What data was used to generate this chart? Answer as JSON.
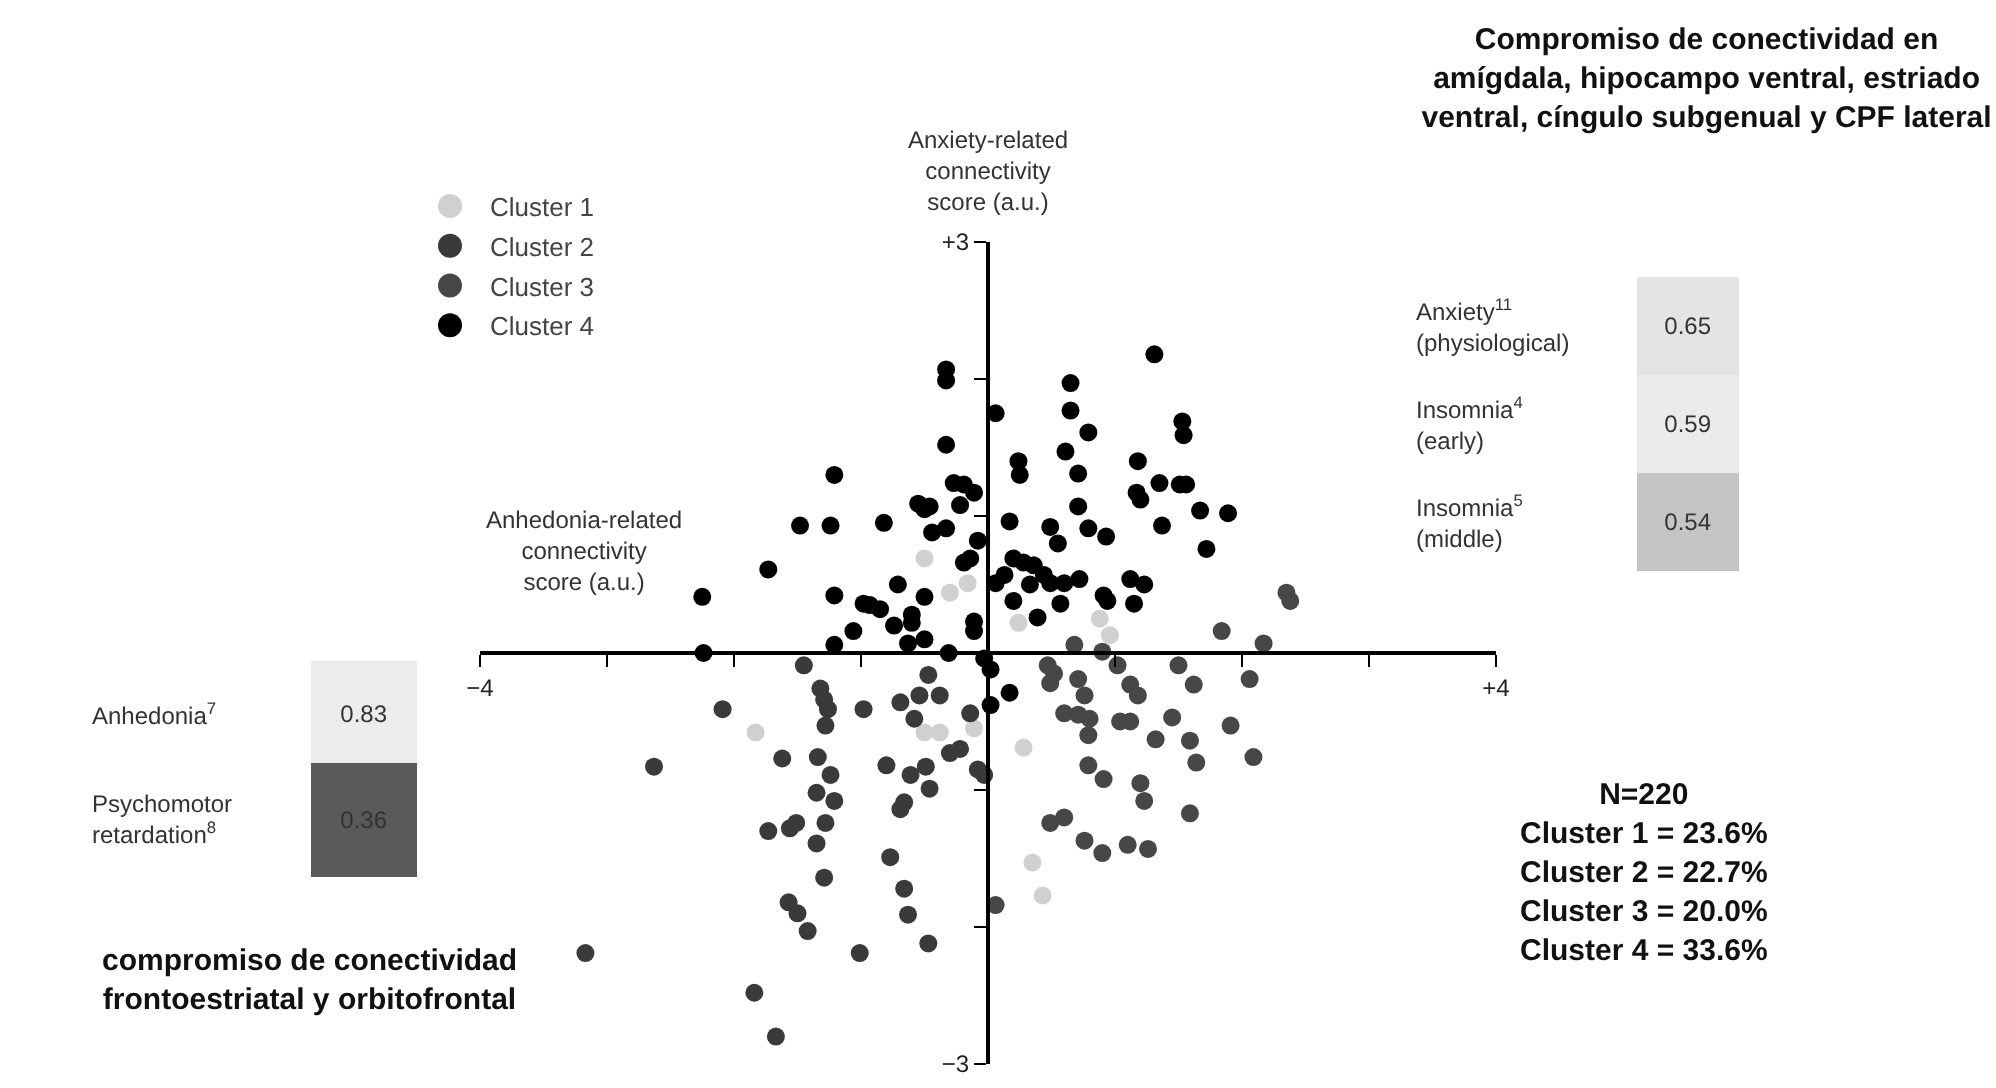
{
  "chart_data": {
    "type": "scatter",
    "title": "Compromiso de conectividad en\namígdala, hipocampo ventral, estriado\nventral, cíngulo subgenual y CPF lateral",
    "xlabel": "Anhedonia-related\nconnectivity\nscore (a.u.)",
    "ylabel": "Anxiety-related\nconnectivity\nscore (a.u.)",
    "xlim": [
      -4,
      4
    ],
    "ylim": [
      -3,
      3
    ],
    "xticks": [
      {
        "value": -4,
        "label": "−4"
      },
      {
        "value": -3,
        "label": null
      },
      {
        "value": -2,
        "label": null
      },
      {
        "value": -1,
        "label": null
      },
      {
        "value": 0,
        "label": null
      },
      {
        "value": 1,
        "label": null
      },
      {
        "value": 2,
        "label": null
      },
      {
        "value": 3,
        "label": null
      },
      {
        "value": 4,
        "label": "+4"
      }
    ],
    "yticks": [
      {
        "value": -3,
        "label": "−3"
      },
      {
        "value": -2,
        "label": null
      },
      {
        "value": -1,
        "label": null
      },
      {
        "value": 0,
        "label": null
      },
      {
        "value": 1,
        "label": null
      },
      {
        "value": 2,
        "label": null
      },
      {
        "value": 3,
        "label": "+3"
      }
    ],
    "grid": false,
    "legend": "top left",
    "marker": "circle",
    "series": [
      {
        "name": "Cluster 1",
        "color": "#d0d0d0",
        "x": [
          -0.5,
          -0.3,
          -0.16,
          0.24,
          0.88,
          0.96,
          -1.83,
          -0.5,
          -0.38,
          -0.11,
          0.28,
          0.35,
          0.43
        ],
        "values": [
          0.69,
          0.44,
          0.51,
          0.22,
          0.25,
          0.13,
          -0.58,
          -0.58,
          -0.58,
          -0.55,
          -0.69,
          -1.53,
          -1.77
        ]
      },
      {
        "name": "Cluster 2",
        "color": "#3a3a3a",
        "x": [
          -1.45,
          -1.32,
          -1.29,
          -1.26,
          -1.28,
          -2.09,
          -0.98,
          -0.69,
          -0.58,
          -0.54,
          -0.38,
          -0.47,
          -0.19,
          -0.14,
          -0.3,
          -0.22,
          -0.08,
          -0.03,
          -2.63,
          -1.62,
          -1.34,
          -1.24,
          -0.8,
          -0.61,
          -0.49,
          -0.46,
          -1.35,
          -1.21,
          -0.66,
          -0.69,
          -1.73,
          -1.56,
          -1.51,
          -1.28,
          -1.35,
          -0.77,
          -1.29,
          -0.66,
          -0.63,
          -1.57,
          -1.5,
          -1.42,
          -0.47,
          -1.01,
          -3.17,
          -1.84,
          -1.67
        ],
        "values": [
          -0.09,
          -0.26,
          -0.34,
          -0.41,
          -0.53,
          -0.41,
          -0.41,
          -0.36,
          -0.48,
          -0.31,
          -0.31,
          -0.16,
          null,
          -0.44,
          -0.73,
          -0.7,
          -0.85,
          -0.89,
          -0.83,
          -0.77,
          -0.76,
          -0.89,
          -0.82,
          -0.89,
          -0.83,
          -0.99,
          -1.02,
          -1.08,
          -1.09,
          -1.14,
          -1.3,
          -1.28,
          -1.24,
          -1.24,
          -1.39,
          -1.49,
          -1.64,
          -1.72,
          -1.91,
          -1.82,
          -1.9,
          -2.03,
          -2.12,
          -2.19,
          -2.19,
          -2.48,
          -2.8
        ]
      },
      {
        "name": "Cluster 3",
        "color": "#474747",
        "x": [
          0.68,
          0.9,
          1.84,
          2.17,
          2.35,
          2.38,
          0.47,
          0.52,
          0.49,
          0.71,
          0.76,
          1.02,
          1.12,
          1.18,
          1.5,
          1.62,
          2.06,
          0.6,
          0.71,
          0.8,
          0.79,
          1.04,
          1.12,
          1.45,
          1.32,
          1.59,
          1.91,
          1.64,
          2.09,
          0.79,
          0.87,
          0.91,
          1.2,
          1.23,
          1.59,
          0.49,
          0.6,
          0.76,
          0.9,
          1.1,
          1.26,
          0.06
        ],
        "values": [
          0.06,
          0.01,
          0.16,
          0.07,
          0.44,
          0.38,
          -0.09,
          -0.15,
          -0.22,
          -0.19,
          -0.31,
          -0.09,
          -0.23,
          -0.31,
          -0.09,
          -0.23,
          -0.19,
          -0.44,
          -0.45,
          -0.48,
          -0.6,
          -0.5,
          -0.5,
          -0.47,
          -0.63,
          -0.64,
          -0.53,
          -0.8,
          -0.76,
          -0.82,
          null,
          -0.92,
          -0.95,
          -1.08,
          -1.17,
          -1.24,
          -1.2,
          -1.37,
          -1.46,
          -1.4,
          -1.43,
          -1.84
        ]
      },
      {
        "name": "Cluster 4",
        "color": "#000000",
        "x": [
          -0.33,
          -0.33,
          0.06,
          -0.33,
          -1.21,
          -1.48,
          -1.24,
          -0.82,
          -0.55,
          -0.5,
          -0.46,
          -0.27,
          -0.19,
          -0.11,
          -0.22,
          -0.44,
          -0.33,
          -0.08,
          -0.19,
          -0.14,
          -1.73,
          -2.25,
          -1.21,
          -0.98,
          -0.93,
          -0.85,
          -0.71,
          -0.5,
          -0.6,
          -0.6,
          -1.06,
          -0.74,
          -0.11,
          -0.11,
          0.06,
          -1.21,
          -0.63,
          -0.5,
          -0.31,
          -2.24,
          -0.03,
          1.31,
          0.65,
          0.65,
          0.79,
          1.53,
          1.54,
          0.24,
          0.25,
          0.61,
          0.71,
          1.18,
          1.17,
          1.2,
          1.35,
          1.51,
          1.56,
          0.71,
          1.67,
          1.89,
          1.37,
          0.17,
          0.49,
          0.55,
          0.79,
          0.93,
          1.72,
          0.2,
          0.28,
          0.36,
          0.13,
          0.44,
          0.49,
          0.6,
          0.72,
          0.33,
          0.2,
          0.57,
          0.39,
          0.91,
          0.94,
          1.12,
          1.23,
          1.15,
          0.02,
          0.17,
          0.02
        ],
        "values": [
          2.07,
          1.99,
          1.75,
          1.52,
          1.3,
          0.93,
          0.93,
          0.95,
          1.09,
          1.05,
          1.07,
          1.24,
          1.23,
          1.17,
          1.08,
          0.88,
          0.91,
          0.82,
          0.66,
          0.69,
          0.61,
          0.41,
          0.42,
          0.36,
          0.35,
          0.32,
          0.5,
          0.41,
          0.28,
          0.22,
          0.16,
          0.2,
          0.23,
          0.16,
          0.51,
          0.06,
          0.07,
          0.1,
          0.0,
          0.0,
          -0.04,
          2.18,
          1.97,
          1.77,
          1.61,
          1.69,
          1.59,
          1.4,
          1.3,
          1.47,
          1.31,
          1.4,
          1.17,
          1.12,
          1.24,
          1.23,
          1.23,
          1.07,
          1.04,
          1.02,
          0.93,
          0.96,
          0.92,
          0.8,
          0.91,
          0.85,
          0.76,
          0.69,
          0.66,
          0.64,
          0.57,
          0.57,
          0.51,
          0.51,
          0.54,
          0.5,
          0.38,
          0.36,
          0.26,
          0.42,
          0.38,
          0.54,
          0.5,
          0.36,
          -0.12,
          -0.29,
          -0.38
        ]
      }
    ],
    "annotations": [
      "Anxiety$^{11}$\n(physiological)",
      "0.65",
      "Insomnia$^{4}$\n(early)",
      "0.59",
      "Insomnia$^{5}$\n(middle)",
      "0.54",
      "Anhedonia$^{7}$",
      "0.83",
      "Psychomotor\nretardation$^{8}$",
      "0.36",
      "compromiso de conectividad\nfrontoestriatal y orbitofrontal",
      "N=220\nCluster 1 = 23.6%\nCluster 2 = 22.7%\nCluster 3 = 20.0%\nCluster 4 = 33.6%"
    ]
  }
}
